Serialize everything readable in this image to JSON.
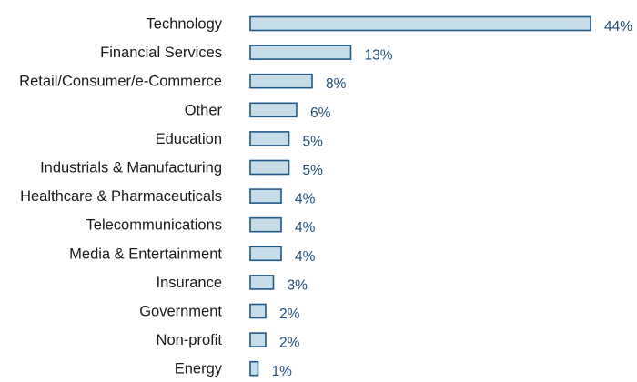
{
  "chart_data": {
    "type": "bar",
    "orientation": "horizontal",
    "categories": [
      "Technology",
      "Financial Services",
      "Retail/Consumer/e-Commerce",
      "Other",
      "Education",
      "Industrials & Manufacturing",
      "Healthcare & Pharmaceuticals",
      "Telecommunications",
      "Media & Entertainment",
      "Insurance",
      "Government",
      "Non-profit",
      "Energy"
    ],
    "values": [
      44,
      13,
      8,
      6,
      5,
      5,
      4,
      4,
      4,
      3,
      2,
      2,
      1
    ],
    "value_labels": [
      "44%",
      "13%",
      "8%",
      "6%",
      "5%",
      "5%",
      "4%",
      "4%",
      "4%",
      "3%",
      "2%",
      "2%",
      "1%"
    ],
    "unit": "%",
    "xlim": [
      0,
      44
    ],
    "grid": false,
    "colors": {
      "bar_fill": "#c6dde8",
      "bar_stroke": "#1f5a8a",
      "value_text": "#1f4e79",
      "label_text": "#1a1a1a"
    }
  }
}
